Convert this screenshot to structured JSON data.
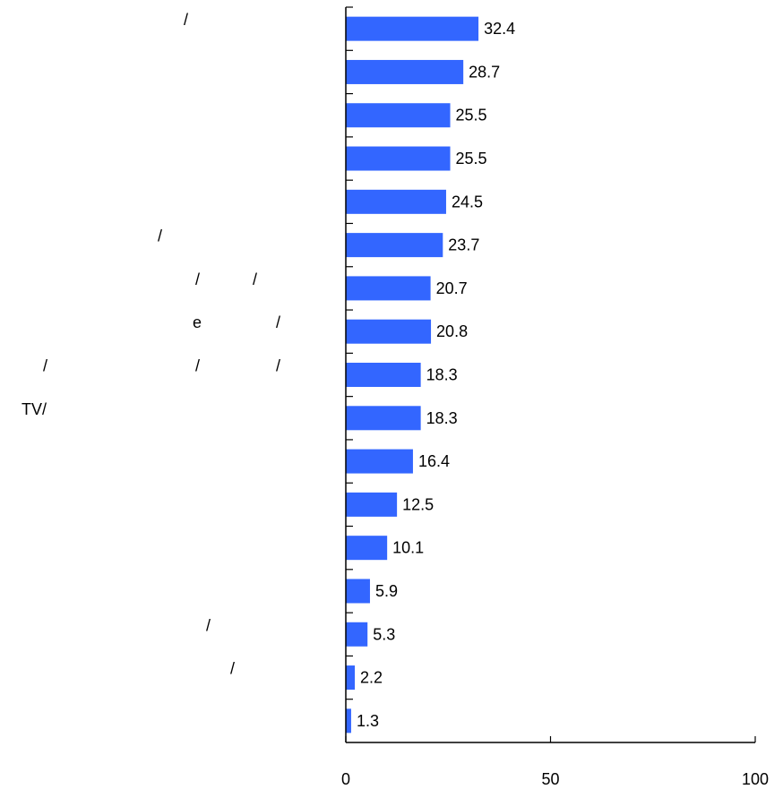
{
  "chart_data": {
    "type": "bar",
    "orientation": "horizontal",
    "categories": [
      "/",
      "",
      "",
      "",
      "",
      "/",
      "/ /",
      "e /",
      "/ / /",
      "TV/",
      "",
      "",
      "",
      "",
      "/",
      "/",
      ""
    ],
    "values": [
      32.4,
      28.7,
      25.5,
      25.5,
      24.5,
      23.7,
      20.7,
      20.8,
      18.3,
      18.3,
      16.4,
      12.5,
      10.1,
      5.9,
      5.3,
      2.2,
      1.3
    ],
    "value_labels": [
      "32.4",
      "28.7",
      "25.5",
      "25.5",
      "24.5",
      "23.7",
      "20.7",
      "20.8",
      "18.3",
      "18.3",
      "16.4",
      "12.5",
      "10.1",
      "5.9",
      "5.3",
      "2.2",
      "1.3"
    ],
    "xlim": [
      0,
      100
    ],
    "x_ticks": [
      0,
      50,
      100
    ],
    "x_tick_labels": [
      "0",
      "50",
      "100"
    ],
    "bar_color": "#3366ff",
    "grid": false,
    "legend": "none"
  }
}
